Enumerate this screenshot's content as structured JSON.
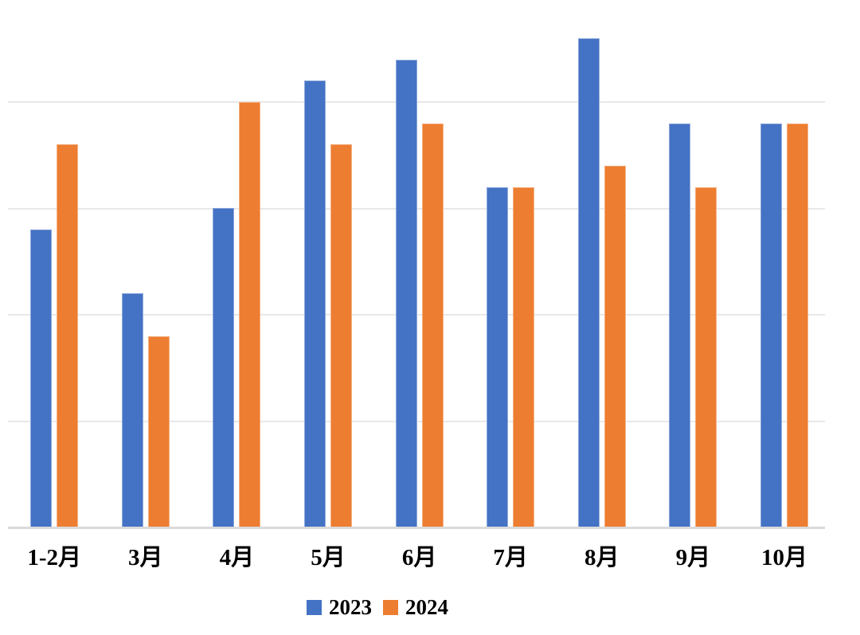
{
  "chart_data": {
    "type": "bar",
    "title": "",
    "xlabel": "",
    "ylabel": "",
    "categories": [
      "1-2月",
      "3月",
      "4月",
      "5月",
      "6月",
      "7月",
      "8月",
      "9月",
      "10月"
    ],
    "series": [
      {
        "name": "2023",
        "color": "#4472C4",
        "border_color": "#8FAADC",
        "values": [
          14,
          11,
          15,
          21,
          22,
          16,
          23,
          19,
          19
        ]
      },
      {
        "name": "2024",
        "color": "#ED7D31",
        "border_color": "#F4B183",
        "values": [
          18,
          9,
          20,
          18,
          19,
          16,
          17,
          16,
          19
        ]
      }
    ],
    "ylim": [
      0,
      25
    ],
    "grid": true,
    "grid_interval": 5,
    "y_tick_labels_visible": false,
    "legend_position": "bottom",
    "background_color": "#ffffff",
    "gridline_color": "#e8e8e8",
    "axis_line_color": "#dadada",
    "label_color": "#000000"
  }
}
